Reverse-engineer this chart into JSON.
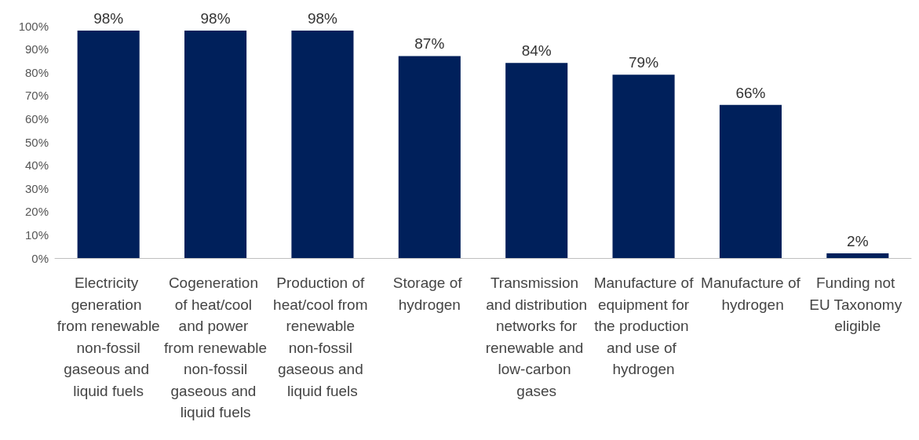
{
  "chart_data": {
    "type": "bar",
    "categories": [
      "Electricity generation from renewable non-fossil gaseous and liquid fuels",
      "Cogeneration of heat/cool and power from renewable non-fossil gaseous and liquid fuels",
      "Production of heat/cool from renewable non-fossil gaseous and liquid fuels",
      "Storage of hydrogen",
      "Transmission and distribution networks for renewable and low-carbon gases",
      "Manufacture of equipment for the production and use of hydrogen",
      "Manufacture of hydrogen",
      "Funding not EU Taxonomy eligible"
    ],
    "values": [
      98,
      98,
      98,
      87,
      84,
      79,
      66,
      2
    ],
    "value_labels": [
      "98%",
      "98%",
      "98%",
      "87%",
      "84%",
      "79%",
      "66%",
      "2%"
    ],
    "color": "#00205b",
    "ylim": [
      0,
      100
    ],
    "yticks": [
      {
        "value": 0,
        "label": "0%"
      },
      {
        "value": 10,
        "label": "10%"
      },
      {
        "value": 20,
        "label": "20%"
      },
      {
        "value": 30,
        "label": "30%"
      },
      {
        "value": 40,
        "label": "40%"
      },
      {
        "value": 50,
        "label": "50%"
      },
      {
        "value": 60,
        "label": "60%"
      },
      {
        "value": 70,
        "label": "70%"
      },
      {
        "value": 80,
        "label": "80%"
      },
      {
        "value": 90,
        "label": "90%"
      },
      {
        "value": 100,
        "label": "100%"
      }
    ],
    "grid": false
  }
}
